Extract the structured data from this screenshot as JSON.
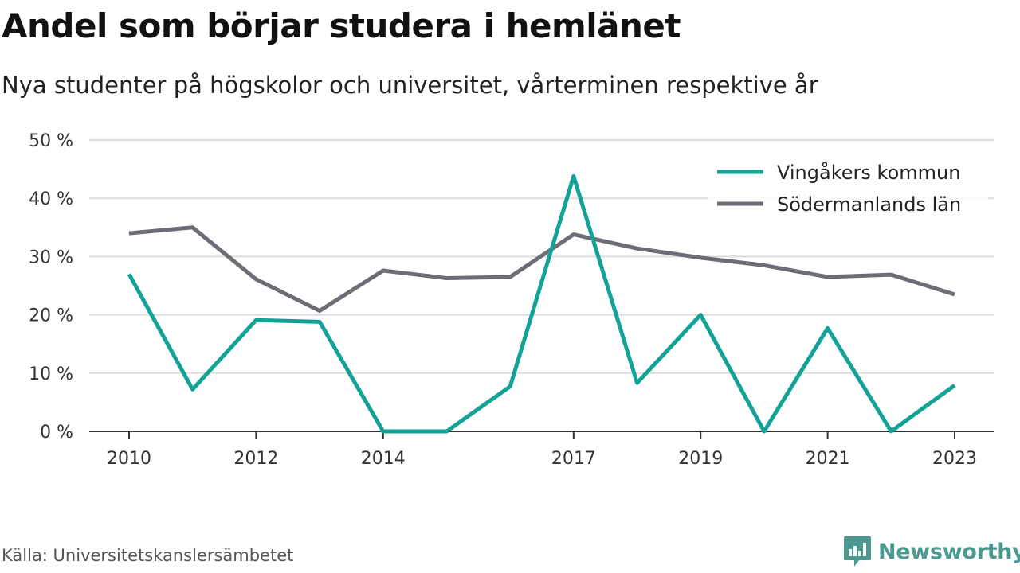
{
  "title": "Andel som börjar studera i hemlänet",
  "subtitle": "Nya studenter på högskolor och universitet, vårterminen respektive år",
  "source": "Källa: Universitetskanslersämbetet",
  "brand": "Newsworthy",
  "colors": {
    "vingaker": "#12a396",
    "sodermanland": "#6e6d76",
    "grid": "#dcdcdc",
    "axis": "#333333",
    "brand": "#4a9a90"
  },
  "chart_data": {
    "type": "line",
    "x": [
      2010,
      2011,
      2012,
      2013,
      2014,
      2015,
      2016,
      2017,
      2018,
      2019,
      2020,
      2021,
      2022,
      2023
    ],
    "x_tick_labels": [
      "2010",
      "2012",
      "2014",
      "2017",
      "2019",
      "2021",
      "2023"
    ],
    "y_tick_labels": [
      "0 %",
      "10 %",
      "20 %",
      "30 %",
      "40 %",
      "50 %"
    ],
    "ylim": [
      0,
      50
    ],
    "grid": true,
    "legend_position": "top-right",
    "series": [
      {
        "name": "Vingåkers kommun",
        "values": [
          27.0,
          7.2,
          19.1,
          18.8,
          0.0,
          0.0,
          7.7,
          43.8,
          8.3,
          20.0,
          0.0,
          17.7,
          0.0,
          7.9
        ]
      },
      {
        "name": "Södermanlands län",
        "values": [
          34.0,
          35.0,
          26.1,
          20.7,
          27.6,
          26.3,
          26.5,
          33.8,
          31.4,
          29.8,
          28.5,
          26.5,
          26.9,
          23.5
        ]
      }
    ]
  }
}
